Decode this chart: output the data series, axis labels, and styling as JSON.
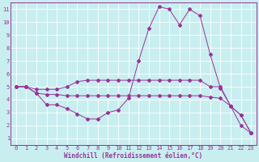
{
  "title": "",
  "xlabel": "Windchill (Refroidissement éolien,°C)",
  "ylabel": "",
  "bg_color": "#c8eef0",
  "grid_color": "#ffffff",
  "line_color": "#993399",
  "xlim": [
    -0.5,
    23.5
  ],
  "ylim": [
    0.5,
    11.5
  ],
  "xticks": [
    0,
    1,
    2,
    3,
    4,
    5,
    6,
    7,
    8,
    9,
    10,
    11,
    12,
    13,
    14,
    15,
    16,
    17,
    18,
    19,
    20,
    21,
    22,
    23
  ],
  "yticks": [
    1,
    2,
    3,
    4,
    5,
    6,
    7,
    8,
    9,
    10,
    11
  ],
  "series": [
    {
      "x": [
        0,
        1,
        2,
        3,
        4,
        5,
        6,
        7,
        8,
        9,
        10,
        11,
        12,
        13,
        14,
        15,
        16,
        17,
        18,
        19,
        20,
        21,
        22,
        23
      ],
      "y": [
        5.0,
        5.0,
        4.5,
        3.6,
        3.6,
        3.3,
        2.9,
        2.5,
        2.5,
        3.0,
        3.2,
        4.1,
        7.0,
        9.5,
        11.2,
        11.0,
        9.8,
        11.0,
        10.5,
        7.5,
        4.9,
        3.5,
        2.0,
        1.4
      ]
    },
    {
      "x": [
        0,
        1,
        2,
        3,
        4,
        5,
        6,
        7,
        8,
        9,
        10,
        11,
        12,
        13,
        14,
        15,
        16,
        17,
        18,
        19,
        20,
        21,
        22,
        23
      ],
      "y": [
        5.0,
        5.0,
        4.5,
        4.4,
        4.4,
        4.3,
        4.3,
        4.3,
        4.3,
        4.3,
        4.3,
        4.3,
        4.3,
        4.3,
        4.3,
        4.3,
        4.3,
        4.3,
        4.3,
        4.2,
        4.1,
        3.5,
        2.8,
        1.4
      ]
    },
    {
      "x": [
        0,
        1,
        2,
        3,
        4,
        5,
        6,
        7,
        8,
        9,
        10,
        11,
        12,
        13,
        14,
        15,
        16,
        17,
        18,
        19,
        20,
        21,
        22,
        23
      ],
      "y": [
        5.0,
        5.0,
        4.8,
        4.8,
        4.8,
        5.0,
        5.4,
        5.5,
        5.5,
        5.5,
        5.5,
        5.5,
        5.5,
        5.5,
        5.5,
        5.5,
        5.5,
        5.5,
        5.5,
        5.0,
        5.0,
        3.5,
        2.8,
        1.4
      ]
    }
  ],
  "tick_fontsize": 5,
  "xlabel_fontsize": 5.5,
  "marker_size": 2.0,
  "linewidth": 0.7
}
